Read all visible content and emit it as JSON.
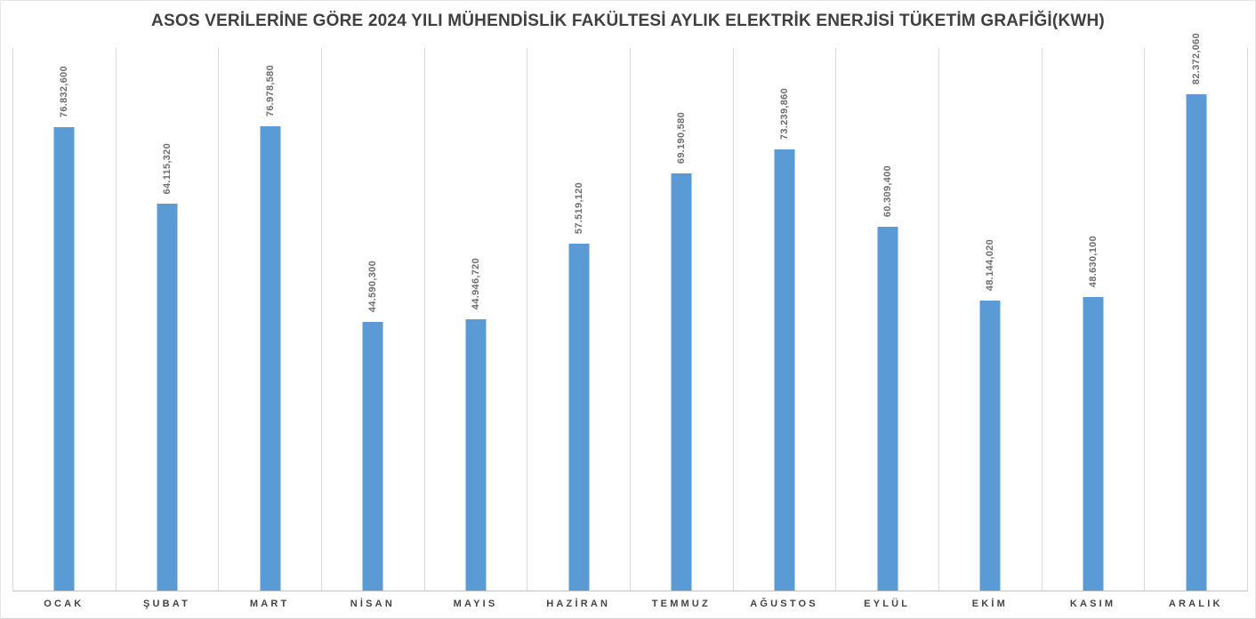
{
  "chart_data": {
    "type": "bar",
    "title": "ASOS VERİLERİNE GÖRE 2024 YILI MÜHENDİSLİK FAKÜLTESİ AYLIK ELEKTRİK ENERJİSİ TÜKETİM GRAFİĞİ(KWH)",
    "categories": [
      "OCAK",
      "ŞUBAT",
      "MART",
      "NİSAN",
      "MAYIS",
      "HAZİRAN",
      "TEMMUZ",
      "AĞUSTOS",
      "EYLÜL",
      "EKİM",
      "KASIM",
      "ARALIK"
    ],
    "values": [
      76832.6,
      64115.32,
      76978.58,
      44590.3,
      44946.72,
      57519.12,
      69190.58,
      73239.86,
      60309.4,
      48144.02,
      48630.1,
      82372.06
    ],
    "value_labels": [
      "76.832,600",
      "64.115,320",
      "76.978,580",
      "44.590,300",
      "44.946,720",
      "57.519,120",
      "69.190,580",
      "73.239,860",
      "60.309,400",
      "48.144,020",
      "48.630,100",
      "82.372,060"
    ],
    "xlabel": "",
    "ylabel": "",
    "ylim": [
      0,
      90000
    ],
    "grid": "vertical-column-gridlines",
    "legend": "none",
    "colors": {
      "bar": "#5B9BD5",
      "gridline": "#D9D9D9",
      "axis_line": "#C3C3C3",
      "value_label": "#6E6E6E",
      "title": "#404040",
      "category_label": "#444444",
      "background": "#FFFFFF"
    }
  }
}
